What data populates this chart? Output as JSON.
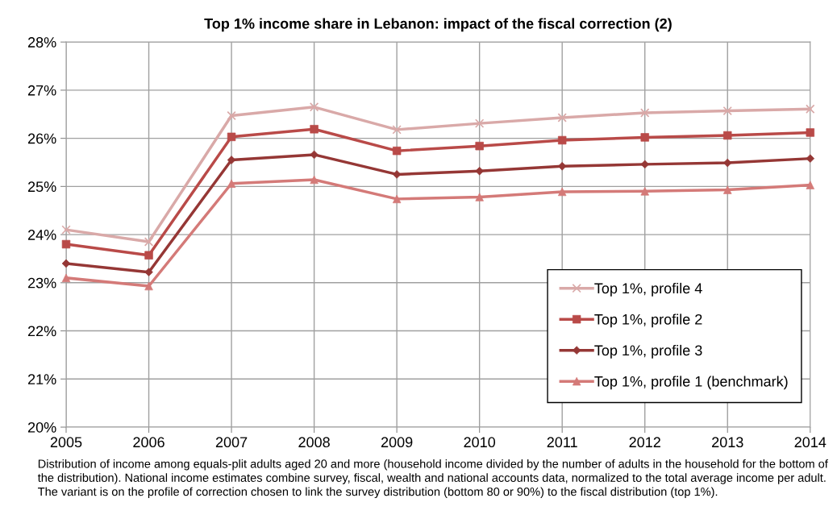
{
  "chart_data": {
    "type": "line",
    "title": "Top 1% income share in Lebanon: impact of the fiscal correction (2)",
    "x": [
      2005,
      2006,
      2007,
      2008,
      2009,
      2010,
      2011,
      2012,
      2013,
      2014
    ],
    "series": [
      {
        "name": "Top 1%, profile 4",
        "color": "#d9a9a8",
        "marker": "cross",
        "values": [
          24.1,
          23.85,
          26.47,
          26.65,
          26.18,
          26.31,
          26.43,
          26.53,
          26.57,
          26.61
        ]
      },
      {
        "name": "Top 1%, profile 2",
        "color": "#b94a48",
        "marker": "square",
        "values": [
          23.8,
          23.57,
          26.03,
          26.19,
          25.74,
          25.84,
          25.96,
          26.02,
          26.06,
          26.12
        ]
      },
      {
        "name": "Top 1%, profile 3",
        "color": "#953735",
        "marker": "diamond",
        "values": [
          23.4,
          23.22,
          25.55,
          25.66,
          25.25,
          25.32,
          25.42,
          25.46,
          25.49,
          25.58
        ]
      },
      {
        "name": "Top 1%, profile 1 (benchmark)",
        "color": "#d47a78",
        "marker": "triangle",
        "values": [
          23.1,
          22.93,
          25.06,
          25.14,
          24.74,
          24.78,
          24.89,
          24.9,
          24.93,
          25.03
        ]
      }
    ],
    "xlim": [
      2005,
      2014
    ],
    "xticks": [
      2005,
      2006,
      2007,
      2008,
      2009,
      2010,
      2011,
      2012,
      2013,
      2014
    ],
    "ylim": [
      20,
      28
    ],
    "yticks": [
      {
        "value": 20,
        "label": "20%"
      },
      {
        "value": 21,
        "label": "21%"
      },
      {
        "value": 22,
        "label": "22%"
      },
      {
        "value": 23,
        "label": "23%"
      },
      {
        "value": 24,
        "label": "24%"
      },
      {
        "value": 25,
        "label": "25%"
      },
      {
        "value": 26,
        "label": "26%"
      },
      {
        "value": 27,
        "label": "27%"
      },
      {
        "value": 28,
        "label": "28%"
      }
    ],
    "grid": true,
    "legend": "bottom right",
    "line_style": "solid",
    "annotations": [
      "Distribution of income among equals-plit adults aged 20 and more (household income divided by the number of adults in the household for the bottom of the distribution). National income estimates combine survey, fiscal, wealth and national accounts data, normalized to the total average income per adult. The variant is on the profile of correction chosen to link the survey distribution (bottom 80 or 90%) to the fiscal distribution (top 1%)."
    ]
  }
}
